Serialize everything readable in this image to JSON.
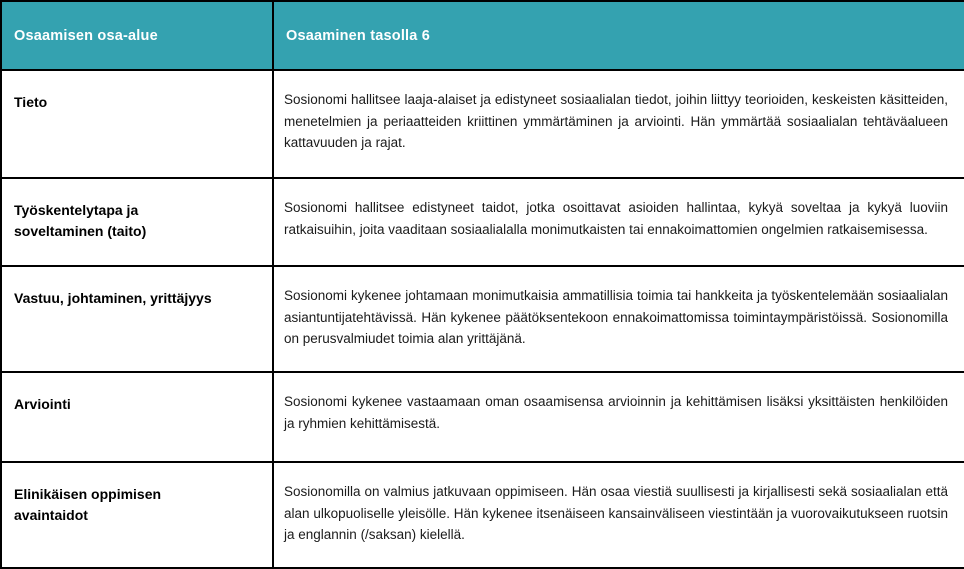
{
  "table": {
    "columns": [
      {
        "label": "Osaamisen osa-alue"
      },
      {
        "label": "Osaaminen tasolla 6"
      }
    ],
    "rows": [
      {
        "area": "Tieto",
        "description": "Sosionomi hallitsee laaja-alaiset ja edistyneet sosiaalialan tiedot, joihin liittyy teorioiden, keskeisten käsitteiden, menetelmien ja periaatteiden kriittinen ymmärtäminen ja arviointi. Hän ymmärtää sosiaalialan tehtäväalueen kattavuuden ja rajat."
      },
      {
        "area": "Työskentelytapa ja soveltaminen (taito)",
        "description": "Sosionomi hallitsee edistyneet taidot, jotka osoittavat asioiden hallintaa, kykyä soveltaa ja kykyä luoviin ratkaisuihin, joita vaaditaan sosiaalialalla monimutkaisten tai ennakoimattomien ongelmien ratkaisemisessa."
      },
      {
        "area": "Vastuu, johtaminen, yrittäjyys",
        "description": "Sosionomi kykenee johtamaan monimutkaisia ammatillisia toimia tai hankkeita ja työskentelemään sosiaalialan asiantuntijatehtävissä. Hän kykenee päätöksentekoon ennakoimattomissa toimintaympäristöissä. Sosionomilla on perusvalmiudet toimia alan yrittäjänä."
      },
      {
        "area": "Arviointi",
        "description": "Sosionomi kykenee vastaamaan oman osaamisensa arvioinnin ja kehittämisen lisäksi yksittäisten henkilöiden ja ryhmien kehittämisestä."
      },
      {
        "area": "Elinikäisen oppimisen avaintaidot",
        "description": "Sosionomilla on valmius jatkuvaan oppimiseen. Hän osaa viestiä suullisesti ja kirjallisesti sekä sosiaalialan että alan ulkopuoliselle yleisölle. Hän kykenee itsenäiseen kansainväliseen viestintään ja vuorovaikutukseen ruotsin ja englannin (/saksan) kielellä."
      }
    ]
  },
  "colors": {
    "header_bg": "#34a2b0",
    "header_text": "#ffffff",
    "border": "#000000",
    "body_text": "#1b1b1b",
    "label_text": "#000000",
    "row_bg": "#ffffff"
  }
}
